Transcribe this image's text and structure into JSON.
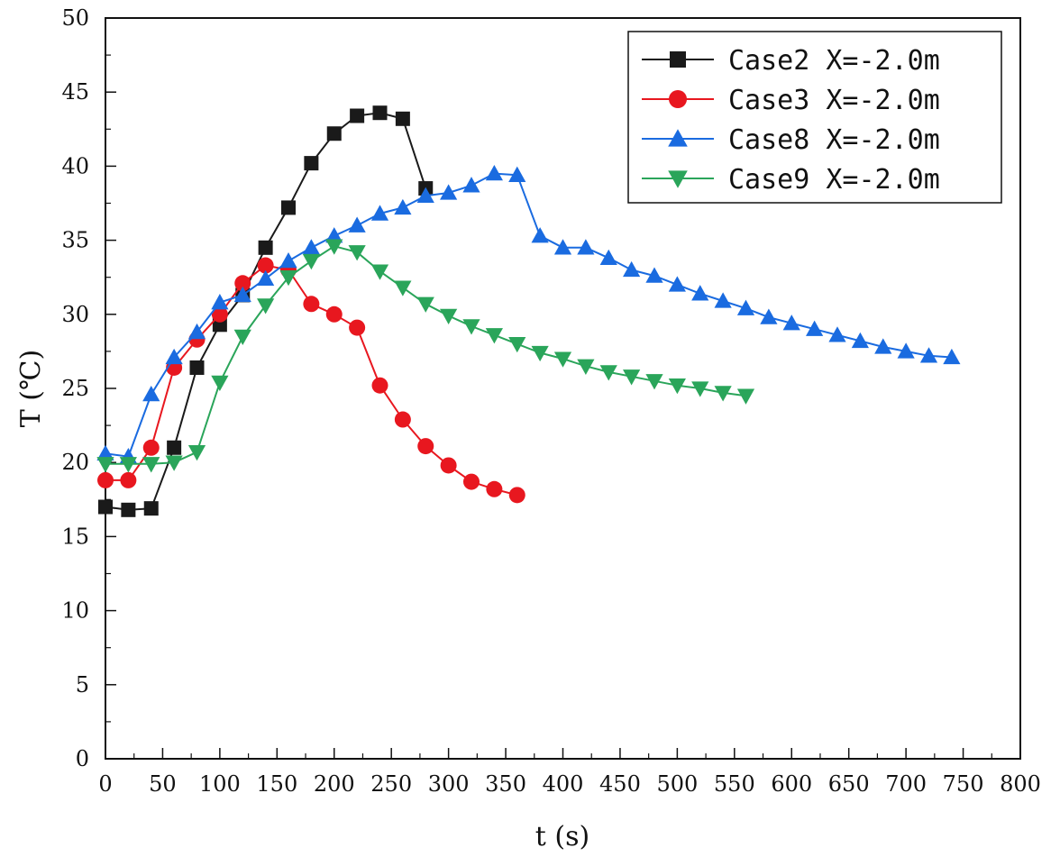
{
  "chart_data": {
    "type": "line",
    "xlabel": "t (s)",
    "ylabel": "T (℃)",
    "xlim": [
      0,
      800
    ],
    "ylim": [
      0,
      50
    ],
    "xticks": [
      0,
      50,
      100,
      150,
      200,
      250,
      300,
      350,
      400,
      450,
      500,
      550,
      600,
      650,
      700,
      750,
      800
    ],
    "yticks": [
      0,
      5,
      10,
      15,
      20,
      25,
      30,
      35,
      40,
      45,
      50
    ],
    "grid": false,
    "legend_position": "top-right",
    "series": [
      {
        "name": "Case2 X=-2.0m",
        "color": "#1a1a1a",
        "marker": "square",
        "x": [
          0,
          20,
          40,
          60,
          80,
          100,
          120,
          140,
          160,
          180,
          200,
          220,
          240,
          260,
          280
        ],
        "y": [
          17.0,
          16.8,
          16.9,
          21.0,
          26.4,
          29.3,
          31.3,
          34.5,
          37.2,
          40.2,
          42.2,
          43.4,
          43.6,
          43.2,
          38.5
        ]
      },
      {
        "name": "Case3 X=-2.0m",
        "color": "#e8171f",
        "marker": "circle",
        "x": [
          0,
          20,
          40,
          60,
          80,
          100,
          120,
          140,
          160,
          180,
          200,
          220,
          240,
          260,
          280,
          300,
          320,
          340,
          360
        ],
        "y": [
          18.8,
          18.8,
          21.0,
          26.4,
          28.3,
          30.0,
          32.1,
          33.3,
          33.0,
          30.7,
          30.0,
          29.1,
          25.2,
          22.9,
          21.1,
          19.8,
          18.7,
          18.2,
          17.8
        ]
      },
      {
        "name": "Case8 X=-2.0m",
        "color": "#1a6be0",
        "marker": "triangle-up",
        "x": [
          0,
          20,
          40,
          60,
          80,
          100,
          120,
          140,
          160,
          180,
          200,
          220,
          240,
          260,
          280,
          300,
          320,
          340,
          360,
          380,
          400,
          420,
          440,
          460,
          480,
          500,
          520,
          540,
          560,
          580,
          600,
          620,
          640,
          660,
          680,
          700,
          720,
          740
        ],
        "y": [
          20.6,
          20.4,
          24.6,
          27.1,
          28.8,
          30.8,
          31.3,
          32.4,
          33.6,
          34.5,
          35.3,
          36.0,
          36.8,
          37.2,
          38.0,
          38.2,
          38.7,
          39.5,
          39.4,
          35.3,
          34.5,
          34.5,
          33.8,
          33.0,
          32.6,
          32.0,
          31.4,
          30.9,
          30.4,
          29.8,
          29.4,
          29.0,
          28.6,
          28.2,
          27.8,
          27.5,
          27.2,
          27.1
        ]
      },
      {
        "name": "Case9 X=-2.0m",
        "color": "#2aa55a",
        "marker": "triangle-down",
        "x": [
          0,
          20,
          40,
          60,
          80,
          100,
          120,
          140,
          160,
          180,
          200,
          220,
          240,
          260,
          280,
          300,
          320,
          340,
          360,
          380,
          400,
          420,
          440,
          460,
          480,
          500,
          520,
          540,
          560
        ],
        "y": [
          19.9,
          19.9,
          19.9,
          20.0,
          20.7,
          25.4,
          28.5,
          30.6,
          32.5,
          33.6,
          34.6,
          34.2,
          32.9,
          31.8,
          30.7,
          29.9,
          29.2,
          28.6,
          28.0,
          27.4,
          27.0,
          26.5,
          26.1,
          25.8,
          25.5,
          25.2,
          25.0,
          24.7,
          24.5
        ]
      }
    ]
  }
}
